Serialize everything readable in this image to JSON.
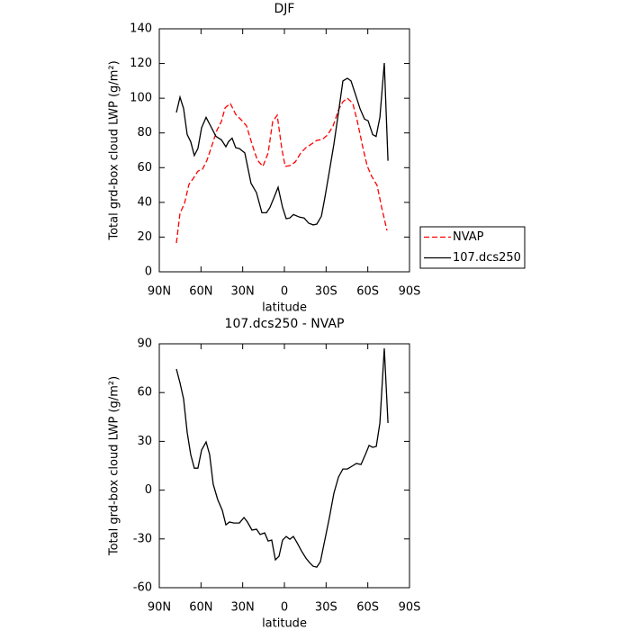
{
  "chart_data": [
    {
      "type": "line",
      "title": "DJF",
      "xlabel": "latitude",
      "ylabel": "Total grd-box cloud LWP (g/m²)",
      "xlim": [
        90,
        -90
      ],
      "xticks": [
        {
          "value": 90,
          "label": "90N"
        },
        {
          "value": 60,
          "label": "60N"
        },
        {
          "value": 30,
          "label": "30N"
        },
        0,
        {
          "value": -30,
          "label": "30S"
        },
        {
          "value": -60,
          "label": "60S"
        },
        {
          "value": -90,
          "label": "90S"
        }
      ],
      "ylim": [
        0,
        140
      ],
      "yticks": [
        0,
        20,
        40,
        60,
        80,
        100,
        120,
        140
      ],
      "legend": "outside-right",
      "series": [
        {
          "name": "NVAP",
          "color": "#ff0000",
          "line_style": "dashed",
          "x": [
            77.7,
            75.1,
            71.9,
            68.7,
            65.4,
            62.2,
            59,
            55.7,
            51.8,
            48.6,
            45.3,
            42.7,
            38.9,
            35,
            31.1,
            27.2,
            23.3,
            19.4,
            15.5,
            11.7,
            8.4,
            5.2,
            1.9,
            -0.6,
            -3.9,
            -7.8,
            -11.7,
            -15.5,
            -19.4,
            -23.3,
            -27.2,
            -31.1,
            -35,
            -38.9,
            -42.1,
            -45.3,
            -49.2,
            -52.5,
            -56.3,
            -59.6,
            -62.8,
            -66.7,
            -69.9,
            -73.8
          ],
          "values": [
            16.6,
            33.7,
            39.4,
            50.3,
            54,
            58,
            59,
            64.3,
            73.6,
            81.4,
            86.6,
            94.4,
            97,
            90.7,
            87.6,
            84,
            73.6,
            64.3,
            60.7,
            68.4,
            86.6,
            90.2,
            71,
            60.7,
            61.2,
            63.2,
            68.4,
            71.5,
            73.6,
            75.7,
            76.2,
            78.8,
            84,
            93.3,
            98,
            100,
            97,
            86.6,
            72,
            61,
            55,
            49.8,
            37.3,
            23.8
          ]
        },
        {
          "name": "107.dcs250",
          "color": "#000000",
          "line_style": "solid",
          "x": [
            77.7,
            75.1,
            72.5,
            69.9,
            67.4,
            64.8,
            62.2,
            59.6,
            56.3,
            53.1,
            49.2,
            45.3,
            42.1,
            40.2,
            37.6,
            35,
            32.4,
            28.5,
            24,
            20.1,
            16.2,
            12.9,
            10.4,
            7.1,
            4.5,
            1.3,
            -1.3,
            -3.9,
            -6.5,
            -11,
            -14.2,
            -17.5,
            -20.7,
            -23.3,
            -26.6,
            -29.1,
            -32.4,
            -35.6,
            -38.9,
            -42.1,
            -45.3,
            -47.9,
            -51.2,
            -54.4,
            -57.6,
            -60.2,
            -63.5,
            -66,
            -68.7,
            -71.9,
            -74.5
          ],
          "values": [
            91.8,
            100.6,
            94,
            79,
            75,
            67,
            71,
            83,
            89,
            84,
            78,
            76,
            72,
            75,
            77,
            71.5,
            71,
            68.5,
            51,
            45.6,
            34,
            34,
            37,
            43.5,
            48.7,
            37,
            30.6,
            31,
            33,
            31.5,
            31,
            28,
            27,
            27.5,
            32,
            42.5,
            58,
            73.6,
            91.8,
            110,
            111.5,
            110,
            102,
            94,
            88,
            87,
            79,
            78,
            89,
            120.3,
            64
          ]
        }
      ]
    },
    {
      "type": "line",
      "title": "107.dcs250 - NVAP",
      "xlabel": "latitude",
      "ylabel": "Total grd-box cloud LWP (g/m²)",
      "xlim": [
        90,
        -90
      ],
      "xticks": [
        {
          "value": 90,
          "label": "90N"
        },
        {
          "value": 60,
          "label": "60N"
        },
        {
          "value": 30,
          "label": "30N"
        },
        0,
        {
          "value": -30,
          "label": "30S"
        },
        {
          "value": -60,
          "label": "60S"
        },
        {
          "value": -90,
          "label": "90S"
        }
      ],
      "ylim": [
        -60,
        90
      ],
      "yticks": [
        -60,
        -30,
        0,
        30,
        60,
        90
      ],
      "color": "#000000",
      "x": [
        77.7,
        75.1,
        72.5,
        69.9,
        67.4,
        64.8,
        62.2,
        59.6,
        56.3,
        53.8,
        51.2,
        48,
        44.7,
        42.1,
        39.5,
        36.3,
        32.4,
        29.1,
        26.6,
        23.3,
        20.1,
        17.5,
        14.2,
        11.7,
        9.1,
        6.5,
        3.9,
        1.3,
        -1.3,
        -3.9,
        -6.5,
        -9.1,
        -12.3,
        -15.5,
        -18.1,
        -20.7,
        -23.3,
        -25.9,
        -29.1,
        -32.4,
        -35.6,
        -38.9,
        -42.1,
        -45.3,
        -48.6,
        -51.8,
        -55.1,
        -58.3,
        -60.9,
        -63.5,
        -66.1,
        -68.7,
        -71.9,
        -74.5
      ],
      "values": [
        74.5,
        66,
        56,
        35.5,
        21.9,
        13.5,
        13.5,
        24.7,
        29.6,
        21.9,
        3.6,
        -5.8,
        -12.4,
        -21.3,
        -19.6,
        -20.2,
        -20.2,
        -16.8,
        -19.6,
        -24.6,
        -24,
        -27.3,
        -26.3,
        -31.3,
        -30.7,
        -42.9,
        -40.7,
        -30.7,
        -28.5,
        -30.2,
        -28.5,
        -32.4,
        -37.4,
        -41.8,
        -44.6,
        -46.8,
        -47.3,
        -44,
        -30.7,
        -16.9,
        -1.9,
        8,
        13,
        13,
        14.7,
        16.4,
        15.8,
        21.9,
        27.5,
        26.3,
        26.9,
        41.3,
        87.2,
        41.3
      ]
    }
  ]
}
